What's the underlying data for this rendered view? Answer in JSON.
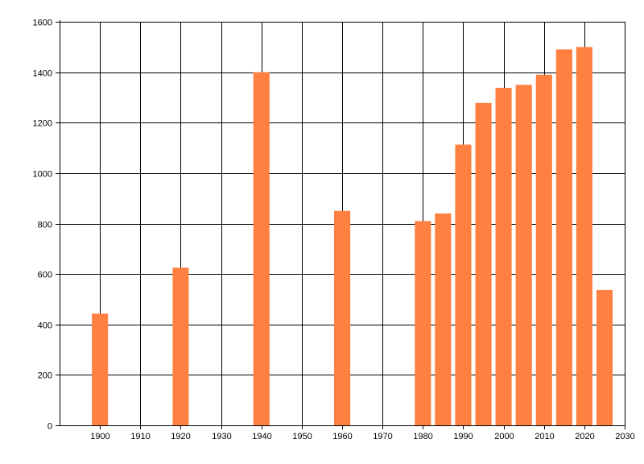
{
  "chart_data": {
    "type": "bar",
    "title": "",
    "xlabel": "",
    "ylabel": "",
    "x": [
      1900,
      1920,
      1940,
      1960,
      1980,
      1985,
      1990,
      1995,
      2000,
      2005,
      2010,
      2015,
      2020,
      2025
    ],
    "values": [
      443,
      625,
      1400,
      850,
      810,
      840,
      1113,
      1278,
      1338,
      1350,
      1390,
      1490,
      1500,
      537
    ],
    "xlim": [
      1890,
      2030
    ],
    "ylim": [
      0,
      1600
    ],
    "x_ticks": [
      1900,
      1910,
      1920,
      1930,
      1940,
      1950,
      1960,
      1970,
      1980,
      1990,
      2000,
      2010,
      2020,
      2030
    ],
    "y_ticks": [
      0,
      200,
      400,
      600,
      800,
      1000,
      1200,
      1400,
      1600
    ],
    "bar_width_years": 4,
    "grid": true,
    "legend": "none",
    "colors": {
      "bar": "#ff8040",
      "grid": "#000000",
      "axis": "#000000",
      "background": "#ffffff"
    }
  }
}
